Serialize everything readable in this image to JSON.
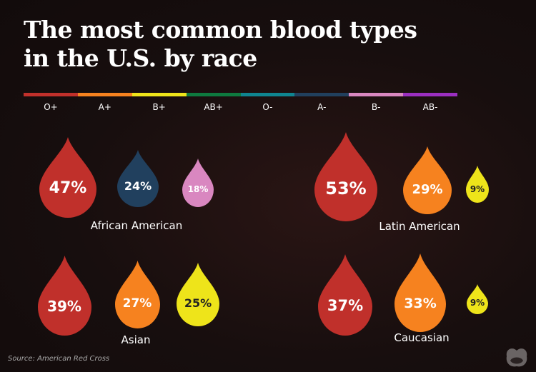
{
  "title": "The most common blood types in the U.S. by race",
  "legend": [
    {
      "label": "O+",
      "color": "#c0302b"
    },
    {
      "label": "A+",
      "color": "#f6821f"
    },
    {
      "label": "B+",
      "color": "#eee41a"
    },
    {
      "label": "AB+",
      "color": "#0e7a3f"
    },
    {
      "label": "O-",
      "color": "#0f8590"
    },
    {
      "label": "A-",
      "color": "#21405e"
    },
    {
      "label": "B-",
      "color": "#d987c0"
    },
    {
      "label": "AB-",
      "color": "#9b2fc0"
    }
  ],
  "source": "Source: American Red Cross",
  "chart_data": {
    "type": "bubble",
    "title": "The most common blood types in the U.S. by race",
    "groups": [
      {
        "name": "African American",
        "items": [
          {
            "type": "O+",
            "value": 47,
            "label": "47%"
          },
          {
            "type": "A-",
            "value": 24,
            "label": "24%"
          },
          {
            "type": "B-",
            "value": 18,
            "label": "18%"
          }
        ]
      },
      {
        "name": "Latin American",
        "items": [
          {
            "type": "O+",
            "value": 53,
            "label": "53%"
          },
          {
            "type": "A+",
            "value": 29,
            "label": "29%"
          },
          {
            "type": "B+",
            "value": 9,
            "label": "9%"
          }
        ]
      },
      {
        "name": "Asian",
        "items": [
          {
            "type": "O+",
            "value": 39,
            "label": "39%"
          },
          {
            "type": "A+",
            "value": 27,
            "label": "27%"
          },
          {
            "type": "B+",
            "value": 25,
            "label": "25%"
          }
        ]
      },
      {
        "name": "Caucasian",
        "items": [
          {
            "type": "O+",
            "value": 37,
            "label": "37%"
          },
          {
            "type": "A+",
            "value": 33,
            "label": "33%"
          },
          {
            "type": "B+",
            "value": 9,
            "label": "9%"
          }
        ]
      }
    ]
  }
}
